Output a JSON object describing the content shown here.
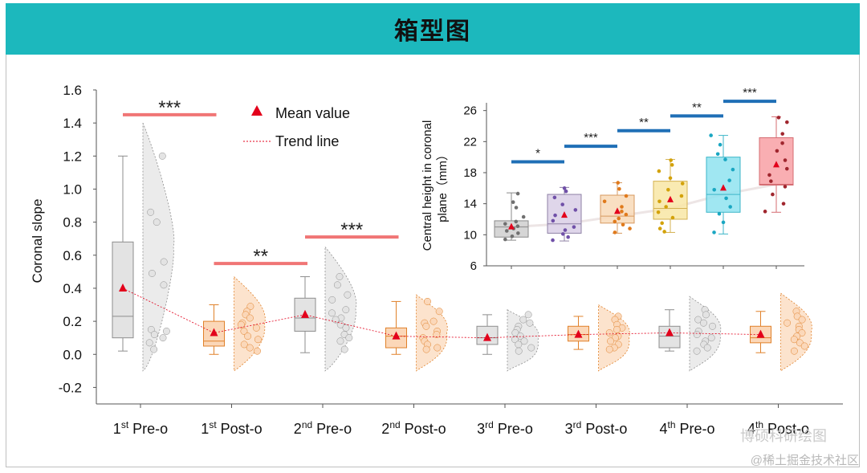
{
  "header": {
    "title": "箱型图"
  },
  "watermark": {
    "wechat": "博硕科研绘图",
    "site": "@稀土掘金技术社区"
  },
  "colors": {
    "header_bg": "#1cb8bd",
    "gray_fill": "#e3e3e3",
    "gray_line": "#8e8e8e",
    "orange_fill": "#fbd7b8",
    "orange_line": "#e0812a",
    "sig_red": "#f07575",
    "sig_blue": "#1f6fb6",
    "mean_red": "#e3001b"
  },
  "chart_data": [
    {
      "type": "box",
      "ylabel": "Coronal slope",
      "ylim": [
        -0.3,
        1.6
      ],
      "yticks": [
        "-0.2",
        "0.0",
        "0.2",
        "0.4",
        "0.6",
        "0.8",
        "1.0",
        "1.2",
        "1.4",
        "1.6"
      ],
      "ytick_values": [
        -0.2,
        0,
        0.2,
        0.4,
        0.6,
        0.8,
        1.0,
        1.2,
        1.4,
        1.6
      ],
      "legend": [
        {
          "label": "Mean value",
          "marker": "triangle",
          "color": "#e3001b"
        },
        {
          "label": "Trend line",
          "marker": "dotted-line",
          "color": "#e3001b"
        }
      ],
      "categories": [
        {
          "num": "1",
          "sup": "st",
          "label": "Pre-o",
          "kind": "gray"
        },
        {
          "num": "1",
          "sup": "st",
          "label": "Post-o",
          "kind": "orange"
        },
        {
          "num": "2",
          "sup": "nd",
          "label": "Pre-o",
          "kind": "gray"
        },
        {
          "num": "2",
          "sup": "nd",
          "label": "Post-o",
          "kind": "orange"
        },
        {
          "num": "3",
          "sup": "rd",
          "label": "Pre-o",
          "kind": "gray"
        },
        {
          "num": "3",
          "sup": "rd",
          "label": "Post-o",
          "kind": "orange"
        },
        {
          "num": "4",
          "sup": "th",
          "label": "Pre-o",
          "kind": "gray"
        },
        {
          "num": "4",
          "sup": "th",
          "label": "Post-o",
          "kind": "orange"
        }
      ],
      "boxes": [
        {
          "min": 0.02,
          "q1": 0.1,
          "median": 0.23,
          "q3": 0.68,
          "max": 1.2,
          "mean": 0.4
        },
        {
          "min": 0.0,
          "q1": 0.05,
          "median": 0.08,
          "q3": 0.2,
          "max": 0.3,
          "mean": 0.13
        },
        {
          "min": 0.01,
          "q1": 0.14,
          "median": 0.22,
          "q3": 0.34,
          "max": 0.47,
          "mean": 0.24
        },
        {
          "min": 0.0,
          "q1": 0.04,
          "median": 0.11,
          "q3": 0.16,
          "max": 0.32,
          "mean": 0.11
        },
        {
          "min": 0.0,
          "q1": 0.06,
          "median": 0.1,
          "q3": 0.17,
          "max": 0.24,
          "mean": 0.1
        },
        {
          "min": 0.03,
          "q1": 0.08,
          "median": 0.12,
          "q3": 0.17,
          "max": 0.23,
          "mean": 0.12
        },
        {
          "min": 0.02,
          "q1": 0.04,
          "median": 0.11,
          "q3": 0.17,
          "max": 0.27,
          "mean": 0.13
        },
        {
          "min": 0.01,
          "q1": 0.07,
          "median": 0.1,
          "q3": 0.17,
          "max": 0.26,
          "mean": 0.12
        }
      ],
      "points": [
        [
          1.2,
          0.86,
          0.8,
          0.56,
          0.49,
          0.42,
          0.15,
          0.14,
          0.12,
          0.1,
          0.07,
          0.03
        ],
        [
          0.29,
          0.26,
          0.24,
          0.22,
          0.19,
          0.18,
          0.16,
          0.14,
          0.11,
          0.09,
          0.06,
          0.04,
          0.02
        ],
        [
          0.47,
          0.42,
          0.36,
          0.33,
          0.27,
          0.25,
          0.22,
          0.21,
          0.18,
          0.16,
          0.12,
          0.1,
          0.08,
          0.03
        ],
        [
          0.32,
          0.26,
          0.2,
          0.19,
          0.17,
          0.14,
          0.12,
          0.1,
          0.08,
          0.06,
          0.04,
          0.03
        ],
        [
          0.24,
          0.21,
          0.19,
          0.17,
          0.15,
          0.13,
          0.11,
          0.09,
          0.08,
          0.06,
          0.04,
          0.02
        ],
        [
          0.23,
          0.21,
          0.18,
          0.16,
          0.15,
          0.13,
          0.11,
          0.1,
          0.08,
          0.06,
          0.04,
          0.03
        ],
        [
          0.27,
          0.24,
          0.21,
          0.19,
          0.17,
          0.14,
          0.12,
          0.1,
          0.08,
          0.06,
          0.04,
          0.02
        ],
        [
          0.26,
          0.23,
          0.21,
          0.19,
          0.17,
          0.15,
          0.13,
          0.11,
          0.09,
          0.07,
          0.05,
          0.02
        ]
      ],
      "violin_top": [
        1.4,
        0.47,
        0.65,
        0.36,
        0.27,
        0.3,
        0.35,
        0.37
      ],
      "violin_bottom": -0.1,
      "significance": [
        {
          "from": 0,
          "to": 1,
          "y": 1.45,
          "label": "***"
        },
        {
          "from": 1,
          "to": 2,
          "y": 0.55,
          "label": "**"
        },
        {
          "from": 2,
          "to": 3,
          "y": 0.71,
          "label": "***"
        }
      ]
    },
    {
      "type": "box",
      "ylabel_line1": "Central height in coronal",
      "ylabel_line2": "plane（mm）",
      "ylim": [
        6,
        27
      ],
      "yticks": [
        "6",
        "10",
        "14",
        "18",
        "22",
        "26"
      ],
      "ytick_values": [
        6,
        10,
        14,
        18,
        22,
        26
      ],
      "boxes": [
        {
          "min": 9.3,
          "q1": 9.7,
          "median": 11.0,
          "q3": 11.8,
          "max": 15.4,
          "mean": 11.0,
          "fill": "#cfcfcf",
          "stroke": "#8a8a8a",
          "dot": "#707070"
        },
        {
          "min": 9.2,
          "q1": 10.2,
          "median": 11.4,
          "q3": 15.2,
          "max": 16.1,
          "mean": 12.5,
          "fill": "#d9cfe6",
          "stroke": "#8f82a6",
          "dot": "#7050a8"
        },
        {
          "min": 10.2,
          "q1": 11.5,
          "median": 12.4,
          "q3": 15.1,
          "max": 16.7,
          "mean": 13.0,
          "fill": "#f8d9b7",
          "stroke": "#d79a60",
          "dot": "#e07a1c"
        },
        {
          "min": 10.3,
          "q1": 12.0,
          "median": 13.4,
          "q3": 16.9,
          "max": 19.7,
          "mean": 14.5,
          "fill": "#f8e6a4",
          "stroke": "#d4b150",
          "dot": "#d3a20a"
        },
        {
          "min": 10.1,
          "q1": 12.9,
          "median": 15.2,
          "q3": 20.0,
          "max": 22.8,
          "mean": 16.0,
          "fill": "#8fe3f0",
          "stroke": "#3cb6c8",
          "dot": "#1aa7c2"
        },
        {
          "min": 12.9,
          "q1": 16.4,
          "median": 16.5,
          "q3": 22.5,
          "max": 25.2,
          "mean": 19.0,
          "fill": "#f8a0a5",
          "stroke": "#d56c72",
          "dot": "#a0262e"
        }
      ],
      "points": [
        [
          15.3,
          14.2,
          13.5,
          12.3,
          11.7,
          11.4,
          11.1,
          10.8,
          10.5,
          10.2,
          9.8,
          9.4
        ],
        [
          16.0,
          15.6,
          14.8,
          13.9,
          13.2,
          12.5,
          11.8,
          11.0,
          10.6,
          10.1,
          9.7,
          9.3
        ],
        [
          16.7,
          15.9,
          15.0,
          14.3,
          13.6,
          13.0,
          12.6,
          12.1,
          11.7,
          11.3,
          10.8,
          10.3
        ],
        [
          19.6,
          19.0,
          18.2,
          17.3,
          16.6,
          15.8,
          15.0,
          14.3,
          13.6,
          12.9,
          12.2,
          11.5,
          10.8,
          10.4
        ],
        [
          22.8,
          21.6,
          20.4,
          19.7,
          18.4,
          17.0,
          15.8,
          14.7,
          13.6,
          12.7,
          11.6,
          10.3
        ],
        [
          25.1,
          24.5,
          23.0,
          21.8,
          20.8,
          19.6,
          18.5,
          17.7,
          16.9,
          16.2,
          15.2,
          14.0,
          13.0
        ]
      ],
      "significance": [
        {
          "from": 0,
          "to": 1,
          "y": 19.4,
          "label": "*"
        },
        {
          "from": 1,
          "to": 2,
          "y": 21.4,
          "label": "***"
        },
        {
          "from": 2,
          "to": 3,
          "y": 23.4,
          "label": "**"
        },
        {
          "from": 3,
          "to": 4,
          "y": 25.3,
          "label": "**"
        },
        {
          "from": 4,
          "to": 5,
          "y": 27.2,
          "label": "***"
        }
      ]
    }
  ]
}
